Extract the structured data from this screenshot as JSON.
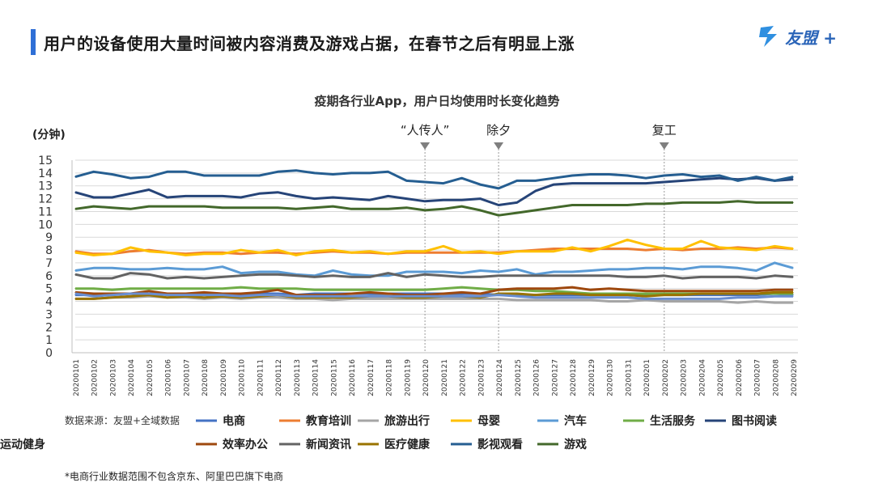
{
  "header": {
    "title": "用户的设备使用大量时间被内容消费及游戏占据，在春节之后有明显上涨",
    "logo_text": "友盟 +",
    "accent_color": "#2f6fd6"
  },
  "footnote": "*电商行业数据范围不包含京东、阿里巴巴旗下电商",
  "chart_data": {
    "type": "line",
    "title": "疫期各行业App，用户日均使用时长变化趋势",
    "ylabel": "(分钟)",
    "ylim": [
      0,
      15
    ],
    "yticks": [
      0,
      1,
      2,
      3,
      4,
      5,
      6,
      7,
      8,
      9,
      10,
      11,
      12,
      13,
      14,
      15
    ],
    "grid": true,
    "legend_position": "bottom",
    "source_label": "数据来源：友盟+全域数据",
    "categories": [
      "20200101",
      "20200102",
      "20200103",
      "20200104",
      "20200105",
      "20200106",
      "20200107",
      "20200108",
      "20200109",
      "20200110",
      "20200111",
      "20200112",
      "20200113",
      "20200114",
      "20200115",
      "20200116",
      "20200117",
      "20200118",
      "20200119",
      "20200120",
      "20200121",
      "20200122",
      "20200123",
      "20200124",
      "20200125",
      "20200126",
      "20200127",
      "20200128",
      "20200129",
      "20200130",
      "20200131",
      "20200201",
      "20200202",
      "20200203",
      "20200204",
      "20200205",
      "20200206",
      "20200207",
      "20200208",
      "20200209"
    ],
    "annotations": [
      {
        "label": "“人传人”",
        "category": "20200120"
      },
      {
        "label": "除夕",
        "category": "20200124"
      },
      {
        "label": "复工",
        "category": "20200202"
      }
    ],
    "series": [
      {
        "name": "电商",
        "color": "#4472c4",
        "values": [
          4.5,
          4.5,
          4.5,
          4.6,
          4.6,
          4.6,
          4.6,
          4.6,
          4.6,
          4.5,
          4.6,
          4.6,
          4.5,
          4.6,
          4.6,
          4.6,
          4.6,
          4.6,
          4.6,
          4.6,
          4.6,
          4.6,
          4.6,
          4.5,
          4.5,
          4.5,
          4.5,
          4.5,
          4.5,
          4.5,
          4.5,
          4.5,
          4.5,
          4.5,
          4.5,
          4.5,
          4.5,
          4.5,
          4.6,
          4.5
        ]
      },
      {
        "name": "教育培训",
        "color": "#ed7d31",
        "values": [
          7.9,
          7.7,
          7.7,
          7.9,
          8.0,
          7.8,
          7.7,
          7.8,
          7.8,
          7.7,
          7.8,
          7.8,
          7.7,
          7.8,
          7.9,
          7.8,
          7.8,
          7.7,
          7.8,
          7.8,
          7.8,
          7.8,
          7.8,
          7.8,
          7.9,
          8.0,
          8.1,
          8.1,
          8.1,
          8.1,
          8.1,
          8.0,
          8.1,
          8.0,
          8.1,
          8.1,
          8.2,
          8.1,
          8.2,
          8.1
        ]
      },
      {
        "name": "旅游出行",
        "color": "#a5a5a5",
        "values": [
          4.2,
          4.2,
          4.3,
          4.3,
          4.4,
          4.3,
          4.3,
          4.2,
          4.3,
          4.2,
          4.3,
          4.3,
          4.2,
          4.2,
          4.1,
          4.2,
          4.2,
          4.2,
          4.2,
          4.2,
          4.2,
          4.2,
          4.2,
          4.2,
          4.1,
          4.1,
          4.1,
          4.1,
          4.1,
          4.0,
          4.0,
          4.1,
          4.0,
          4.0,
          4.0,
          4.0,
          3.9,
          4.0,
          3.9,
          3.9
        ]
      },
      {
        "name": "母婴",
        "color": "#ffc000",
        "values": [
          7.8,
          7.6,
          7.7,
          8.2,
          7.9,
          7.8,
          7.6,
          7.7,
          7.7,
          8.0,
          7.8,
          8.0,
          7.6,
          7.9,
          8.0,
          7.8,
          7.9,
          7.7,
          7.9,
          7.9,
          8.3,
          7.8,
          7.9,
          7.7,
          7.9,
          7.9,
          7.9,
          8.2,
          7.9,
          8.3,
          8.8,
          8.4,
          8.1,
          8.1,
          8.7,
          8.2,
          8.1,
          8.0,
          8.3,
          8.1
        ]
      },
      {
        "name": "汽车",
        "color": "#5b9bd5",
        "values": [
          6.4,
          6.6,
          6.6,
          6.5,
          6.5,
          6.6,
          6.5,
          6.5,
          6.7,
          6.2,
          6.3,
          6.3,
          6.1,
          6.0,
          6.4,
          6.1,
          6.0,
          6.0,
          6.3,
          6.3,
          6.3,
          6.2,
          6.4,
          6.3,
          6.5,
          6.1,
          6.3,
          6.3,
          6.4,
          6.5,
          6.5,
          6.6,
          6.6,
          6.5,
          6.7,
          6.7,
          6.6,
          6.4,
          7.0,
          6.6
        ]
      },
      {
        "name": "生活服务",
        "color": "#70ad47",
        "values": [
          5.0,
          5.0,
          4.9,
          5.0,
          5.0,
          5.0,
          5.0,
          5.0,
          5.0,
          5.1,
          5.0,
          5.0,
          5.0,
          4.9,
          4.9,
          4.9,
          4.9,
          4.9,
          4.9,
          4.9,
          5.0,
          5.1,
          5.0,
          4.9,
          4.9,
          4.8,
          4.8,
          4.7,
          4.6,
          4.6,
          4.6,
          4.6,
          4.6,
          4.6,
          4.6,
          4.6,
          4.6,
          4.6,
          4.6,
          4.6
        ]
      },
      {
        "name": "图书阅读",
        "color": "#264478",
        "values": [
          12.5,
          12.1,
          12.1,
          12.4,
          12.7,
          12.1,
          12.2,
          12.2,
          12.2,
          12.1,
          12.4,
          12.5,
          12.2,
          12.0,
          12.1,
          12.0,
          11.9,
          12.2,
          12.0,
          11.8,
          11.9,
          11.9,
          12.0,
          11.5,
          11.7,
          12.6,
          13.1,
          13.2,
          13.2,
          13.2,
          13.2,
          13.2,
          13.3,
          13.4,
          13.5,
          13.6,
          13.5,
          13.6,
          13.4,
          13.5
        ]
      },
      {
        "name": "效率办公",
        "color": "#9e480e",
        "values": [
          4.7,
          4.6,
          4.6,
          4.6,
          4.8,
          4.6,
          4.6,
          4.7,
          4.6,
          4.6,
          4.7,
          4.9,
          4.5,
          4.5,
          4.5,
          4.6,
          4.7,
          4.6,
          4.5,
          4.5,
          4.6,
          4.7,
          4.6,
          4.9,
          5.0,
          5.0,
          5.0,
          5.1,
          4.9,
          5.0,
          4.9,
          4.8,
          4.8,
          4.8,
          4.8,
          4.8,
          4.8,
          4.8,
          4.9,
          4.9
        ]
      },
      {
        "name": "新闻资讯",
        "color": "#636363",
        "values": [
          6.1,
          5.8,
          5.8,
          6.2,
          6.1,
          5.8,
          5.9,
          5.8,
          5.9,
          6.0,
          6.1,
          6.1,
          6.0,
          5.9,
          6.0,
          5.9,
          5.9,
          6.2,
          5.9,
          6.1,
          6.0,
          5.9,
          5.9,
          6.0,
          6.0,
          6.0,
          6.0,
          6.0,
          6.0,
          6.0,
          5.9,
          5.9,
          6.0,
          5.8,
          5.9,
          5.9,
          5.9,
          5.8,
          6.0,
          5.9
        ]
      },
      {
        "name": "医疗健康",
        "color": "#997300",
        "values": [
          4.2,
          4.2,
          4.3,
          4.4,
          4.5,
          4.3,
          4.4,
          4.3,
          4.4,
          4.3,
          4.4,
          4.5,
          4.3,
          4.3,
          4.3,
          4.3,
          4.4,
          4.4,
          4.3,
          4.3,
          4.4,
          4.4,
          4.3,
          4.6,
          4.6,
          4.5,
          4.6,
          4.6,
          4.5,
          4.5,
          4.5,
          4.4,
          4.5,
          4.5,
          4.6,
          4.6,
          4.6,
          4.6,
          4.7,
          4.7
        ]
      },
      {
        "name": "影视观看",
        "color": "#255e91",
        "values": [
          13.7,
          14.1,
          13.9,
          13.6,
          13.7,
          14.1,
          14.1,
          13.8,
          13.8,
          13.8,
          13.8,
          14.1,
          14.2,
          14.0,
          13.9,
          14.0,
          14.0,
          14.1,
          13.4,
          13.3,
          13.2,
          13.6,
          13.1,
          12.8,
          13.4,
          13.4,
          13.6,
          13.8,
          13.9,
          13.9,
          13.8,
          13.6,
          13.8,
          13.9,
          13.7,
          13.8,
          13.4,
          13.7,
          13.4,
          13.7
        ]
      },
      {
        "name": "游戏",
        "color": "#43682b",
        "values": [
          11.2,
          11.4,
          11.3,
          11.2,
          11.4,
          11.4,
          11.4,
          11.4,
          11.3,
          11.3,
          11.3,
          11.3,
          11.2,
          11.3,
          11.4,
          11.2,
          11.2,
          11.2,
          11.3,
          11.1,
          11.2,
          11.4,
          11.1,
          10.7,
          10.9,
          11.1,
          11.3,
          11.5,
          11.5,
          11.5,
          11.5,
          11.6,
          11.6,
          11.7,
          11.7,
          11.7,
          11.8,
          11.7,
          11.7,
          11.7
        ]
      },
      {
        "name": "运动健身",
        "color": "#698ed0",
        "values": [
          4.6,
          4.4,
          4.5,
          4.6,
          4.6,
          4.5,
          4.5,
          4.5,
          4.5,
          4.4,
          4.5,
          4.5,
          4.4,
          4.4,
          4.4,
          4.4,
          4.4,
          4.4,
          4.4,
          4.4,
          4.4,
          4.4,
          4.4,
          4.5,
          4.4,
          4.3,
          4.3,
          4.3,
          4.3,
          4.3,
          4.3,
          4.2,
          4.2,
          4.2,
          4.2,
          4.2,
          4.3,
          4.3,
          4.4,
          4.4
        ]
      }
    ]
  }
}
